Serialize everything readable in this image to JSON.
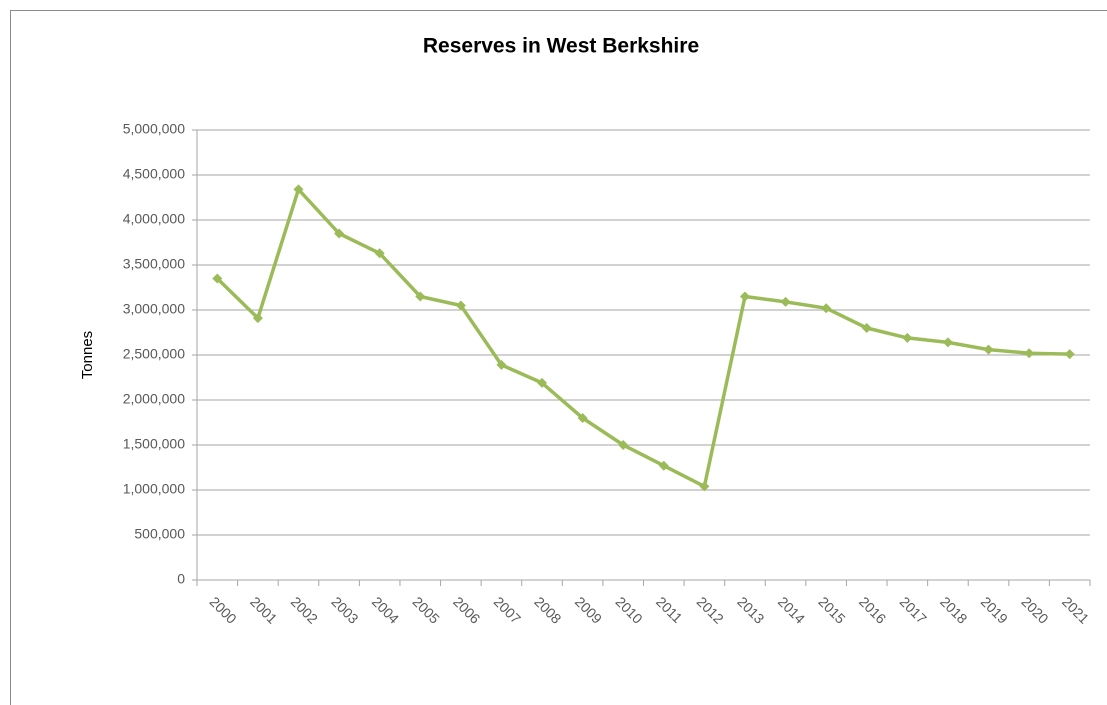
{
  "chart_data": {
    "type": "line",
    "title": "Reserves in West Berkshire",
    "y_label": "Tonnes",
    "categories": [
      "2000",
      "2001",
      "2002",
      "2003",
      "2004",
      "2005",
      "2006",
      "2007",
      "2008",
      "2009",
      "2010",
      "2011",
      "2012",
      "2013",
      "2014",
      "2015",
      "2016",
      "2017",
      "2018",
      "2019",
      "2020",
      "2021"
    ],
    "series": [
      {
        "name": "Reserves",
        "color": "#9bbb59",
        "values": [
          3350000,
          2910000,
          4340000,
          3850000,
          3630000,
          3150000,
          3050000,
          2390000,
          2190000,
          1800000,
          1500000,
          1270000,
          1040000,
          3150000,
          3090000,
          3020000,
          2800000,
          2690000,
          2640000,
          2560000,
          2520000,
          2510000
        ]
      }
    ],
    "ylim": [
      0,
      5000000
    ],
    "yticks": [
      0,
      {
        "value": 500000,
        "label": "500,000"
      },
      {
        "value": 1000000,
        "label": "1,000,000"
      },
      {
        "value": 1500000,
        "label": "1,500,000"
      },
      {
        "value": 2000000,
        "label": "2,000,000"
      },
      {
        "value": 2500000,
        "label": "2,500,000"
      },
      {
        "value": 3000000,
        "label": "3,000,000"
      },
      {
        "value": 3500000,
        "label": "3,500,000"
      },
      {
        "value": 4000000,
        "label": "4,000,000"
      },
      {
        "value": 4500000,
        "label": "4,500,000"
      },
      {
        "value": 5000000,
        "label": "5,000,000"
      }
    ],
    "grid": true
  }
}
